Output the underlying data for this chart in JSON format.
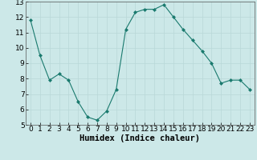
{
  "x": [
    0,
    1,
    2,
    3,
    4,
    5,
    6,
    7,
    8,
    9,
    10,
    11,
    12,
    13,
    14,
    15,
    16,
    17,
    18,
    19,
    20,
    21,
    22,
    23
  ],
  "y": [
    11.8,
    9.5,
    7.9,
    8.3,
    7.9,
    6.5,
    5.5,
    5.3,
    5.9,
    7.3,
    11.2,
    12.3,
    12.5,
    12.5,
    12.8,
    12.0,
    11.2,
    10.5,
    9.8,
    9.0,
    7.7,
    7.9,
    7.9,
    7.3
  ],
  "line_color": "#1a7a6e",
  "marker": "D",
  "marker_size": 2,
  "bg_color": "#cce8e8",
  "grid_color": "#b8d8d8",
  "xlabel": "Humidex (Indice chaleur)",
  "xlim": [
    -0.5,
    23.5
  ],
  "ylim": [
    5,
    13
  ],
  "yticks": [
    5,
    6,
    7,
    8,
    9,
    10,
    11,
    12,
    13
  ],
  "xticks": [
    0,
    1,
    2,
    3,
    4,
    5,
    6,
    7,
    8,
    9,
    10,
    11,
    12,
    13,
    14,
    15,
    16,
    17,
    18,
    19,
    20,
    21,
    22,
    23
  ],
  "tick_fontsize": 6.5,
  "xlabel_fontsize": 7.5
}
